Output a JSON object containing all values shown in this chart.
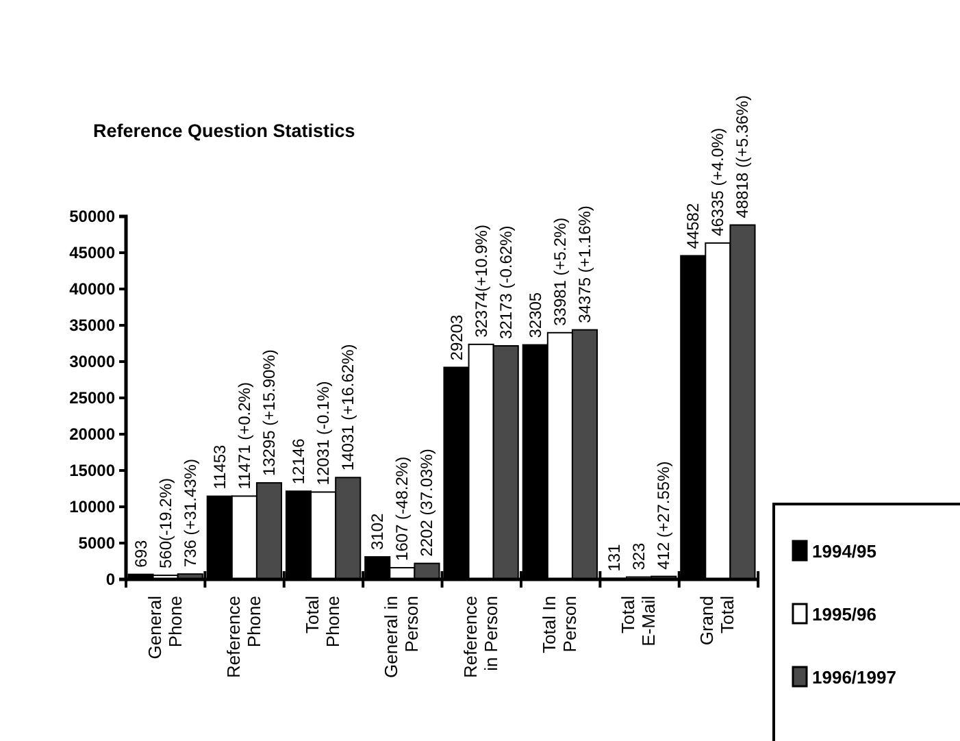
{
  "chart_data": {
    "type": "bar",
    "title": "Reference Question Statistics",
    "categories": [
      "General Phone",
      "Reference Phone",
      "Total Phone",
      "General in Person",
      "Reference in Person",
      "Total In Person",
      "Total E-Mail",
      "Grand Total"
    ],
    "series": [
      {
        "name": "1994/95",
        "color": "#000000",
        "values": [
          693,
          11453,
          12146,
          3102,
          29203,
          32305,
          131,
          44582
        ],
        "value_labels": [
          "693",
          "11453",
          "12146",
          "3102",
          "29203",
          "32305",
          "131",
          "44582"
        ]
      },
      {
        "name": "1995/96",
        "color": "#ffffff",
        "values": [
          560,
          11471,
          12031,
          1607,
          32374,
          33981,
          323,
          46335
        ],
        "value_labels": [
          "560(-19.2%)",
          "11471 (+0.2%)",
          "12031 (-0.1%)",
          "1607 (-48.2%)",
          "32374(+10.9%)",
          "33981 (+5.2%)",
          "323",
          "46335 (+4.0%)"
        ]
      },
      {
        "name": "1996/1997",
        "color": "#4a4a4a",
        "values": [
          736,
          13295,
          14031,
          2202,
          32173,
          34375,
          412,
          48818
        ],
        "value_labels": [
          "736 (+31.43%)",
          "13295 (+15.90%)",
          "14031 (+16.62%)",
          "2202 (37.03%)",
          "32173 (-0.62%)",
          "34375 (+1.16%)",
          "412 (+27.55%)",
          "48818 ((+5.36%)"
        ]
      }
    ],
    "ylim": [
      0,
      50000
    ],
    "yticks": [
      0,
      5000,
      10000,
      15000,
      20000,
      25000,
      30000,
      35000,
      40000,
      45000,
      50000
    ],
    "grid": false,
    "legend": "bottom right"
  }
}
